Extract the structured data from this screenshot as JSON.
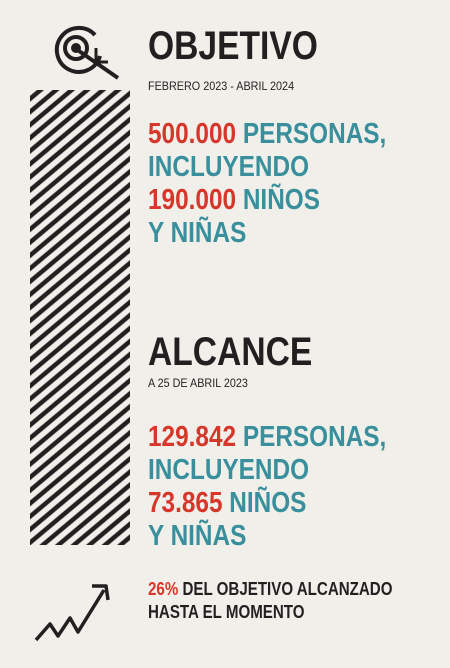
{
  "objetivo": {
    "title": "OBJETIVO",
    "subtitle": "FEBRERO 2023 - ABRIL 2024",
    "lines": [
      [
        "500.000",
        "PERSONAS,"
      ],
      [
        "INCLUYENDO"
      ],
      [
        "190.000",
        "NIÑOS"
      ],
      [
        "Y NIÑAS"
      ]
    ]
  },
  "alcance": {
    "title": "ALCANCE",
    "subtitle": "A 25 DE ABRIL 2023",
    "lines": [
      [
        "129.842",
        "PERSONAS,"
      ],
      [
        "INCLUYENDO"
      ],
      [
        "73.865",
        "NIÑOS"
      ],
      [
        "Y NIÑAS"
      ]
    ]
  },
  "footer": {
    "percent": "26%",
    "line1": "DEL OBJETIVO ALCANZADO",
    "line2": "HASTA EL MOMENTO"
  }
}
